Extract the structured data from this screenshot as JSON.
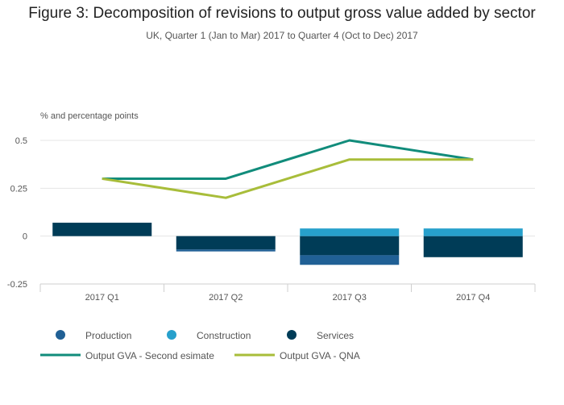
{
  "chart_data": {
    "type": "bar",
    "title": "Figure 3: Decomposition of revisions to output gross value added by sector",
    "subtitle": "UK, Quarter 1 (Jan to Mar) 2017 to Quarter 4 (Oct to Dec) 2017",
    "ylabel": "% and percentage points",
    "xlabel": "",
    "categories": [
      "2017 Q1",
      "2017 Q2",
      "2017 Q3",
      "2017 Q4"
    ],
    "ylim": [
      -0.25,
      0.5
    ],
    "yticks": [
      {
        "value": 0.5,
        "label": "0.5"
      },
      {
        "value": 0.25,
        "label": "0.25"
      },
      {
        "value": 0,
        "label": "0"
      },
      {
        "value": -0.25,
        "label": "-0.25"
      }
    ],
    "grid": true,
    "legend_position": "bottom",
    "stacked": true,
    "bar_series": [
      {
        "name": "Production",
        "color": "#206095",
        "values": [
          0,
          -0.01,
          -0.05,
          0
        ]
      },
      {
        "name": "Construction",
        "color": "#27a0cc",
        "values": [
          0,
          0,
          0.04,
          0.04
        ]
      },
      {
        "name": "Services",
        "color": "#003c57",
        "values": [
          0.07,
          -0.07,
          -0.1,
          -0.11
        ]
      }
    ],
    "line_series": [
      {
        "name": "Output GVA - Second esimate",
        "color": "#118c7b",
        "values": [
          0.3,
          0.3,
          0.5,
          0.4
        ]
      },
      {
        "name": "Output GVA - QNA",
        "color": "#a8bd3a",
        "values": [
          0.3,
          0.2,
          0.4,
          0.4
        ]
      }
    ]
  }
}
